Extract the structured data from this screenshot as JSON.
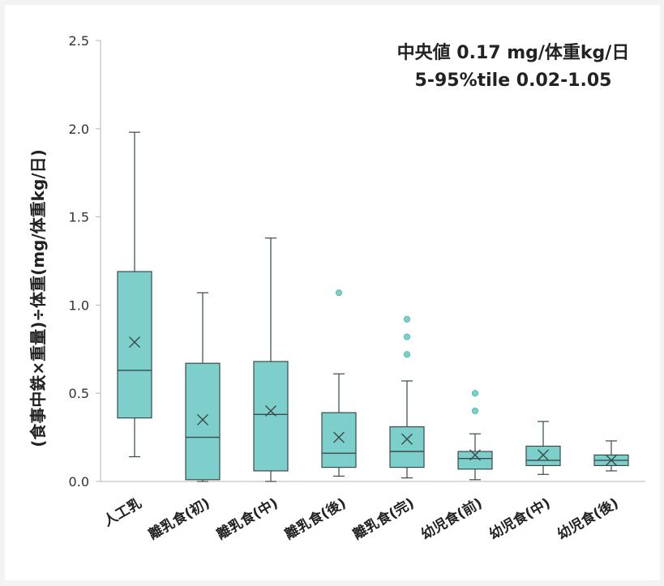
{
  "chart_data": {
    "type": "box",
    "title": "",
    "xlabel": "",
    "ylabel": "(食事中鉄×重量)÷体重(mg/体重kg/日)",
    "ylim": [
      0,
      2.5
    ],
    "yticks": [
      "0.0",
      "0.5",
      "1.0",
      "1.5",
      "2.0",
      "2.5"
    ],
    "grid": false,
    "annotation": [
      "中央値 0.17 mg/体重kg/日",
      "5-95%tile 0.02-1.05"
    ],
    "colors": {
      "box_fill": "#7dcfcb",
      "box_stroke": "#3a4a4a",
      "outlier": "#7dcfcb"
    },
    "categories": [
      "人工乳",
      "離乳食(初)",
      "離乳食(中)",
      "離乳食(後)",
      "離乳食(完)",
      "幼児食(前)",
      "幼児食(中)",
      "幼児食(後)"
    ],
    "boxes": [
      {
        "whisker_low": 0.14,
        "q1": 0.36,
        "median": 0.63,
        "q3": 1.19,
        "whisker_high": 1.98,
        "mean": 0.79,
        "outliers": []
      },
      {
        "whisker_low": 0.0,
        "q1": 0.01,
        "median": 0.25,
        "q3": 0.67,
        "whisker_high": 1.07,
        "mean": 0.35,
        "outliers": []
      },
      {
        "whisker_low": 0.0,
        "q1": 0.06,
        "median": 0.38,
        "q3": 0.68,
        "whisker_high": 1.38,
        "mean": 0.4,
        "outliers": []
      },
      {
        "whisker_low": 0.03,
        "q1": 0.08,
        "median": 0.16,
        "q3": 0.39,
        "whisker_high": 0.61,
        "mean": 0.25,
        "outliers": [
          1.07
        ]
      },
      {
        "whisker_low": 0.02,
        "q1": 0.08,
        "median": 0.17,
        "q3": 0.31,
        "whisker_high": 0.57,
        "mean": 0.24,
        "outliers": [
          0.72,
          0.82,
          0.92
        ]
      },
      {
        "whisker_low": 0.01,
        "q1": 0.07,
        "median": 0.13,
        "q3": 0.17,
        "whisker_high": 0.27,
        "mean": 0.15,
        "outliers": [
          0.4,
          0.5
        ]
      },
      {
        "whisker_low": 0.04,
        "q1": 0.09,
        "median": 0.12,
        "q3": 0.2,
        "whisker_high": 0.34,
        "mean": 0.15,
        "outliers": []
      },
      {
        "whisker_low": 0.06,
        "q1": 0.09,
        "median": 0.12,
        "q3": 0.15,
        "whisker_high": 0.23,
        "mean": 0.12,
        "outliers": []
      }
    ]
  }
}
